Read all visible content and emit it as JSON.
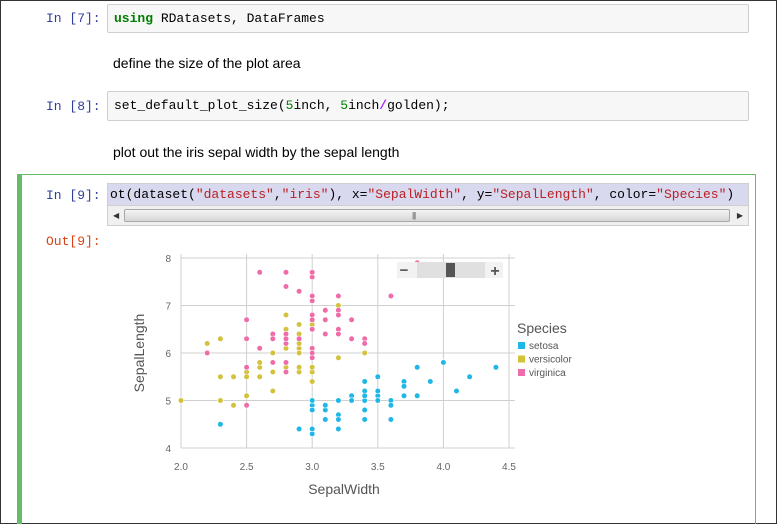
{
  "cells": {
    "c7": {
      "prompt": "In [7]:",
      "kw": "using",
      "rest": " RDatasets, DataFrames"
    },
    "md1": {
      "text": "define the size of the plot area"
    },
    "c8": {
      "prompt": "In [8]:",
      "p1": "set_default_plot_size(",
      "n1": "5",
      "p2": "inch, ",
      "n2": "5",
      "p3": "inch",
      "op": "/",
      "p4": "golden);"
    },
    "md2": {
      "text": "plot out the iris sepal width by the sepal length"
    },
    "c9": {
      "prompt": "In [9]:",
      "out_prompt": "Out[9]:",
      "t1": "ot(dataset(",
      "s1": "\"datasets\"",
      "t2": ",",
      "s2": "\"iris\"",
      "t3": "), x=",
      "s3": "\"SepalWidth\"",
      "t4": ", y=",
      "s4": "\"SepalLength\"",
      "t5": ", color=",
      "s5": "\"Species\"",
      "t6": ")"
    }
  },
  "plot_controls": {
    "zoom_out": "−",
    "zoom_in": "+"
  },
  "colors": {
    "setosa": "#1fb7e8",
    "versicolor": "#d4c13c",
    "virginica": "#ee6ca8"
  },
  "chart_data": {
    "type": "scatter",
    "xlabel": "SepalWidth",
    "ylabel": "SepalLength",
    "xlim": [
      2.0,
      4.5
    ],
    "ylim": [
      4,
      8
    ],
    "xticks": [
      "2.0",
      "2.5",
      "3.0",
      "3.5",
      "4.0",
      "4.5"
    ],
    "yticks": [
      "4",
      "5",
      "6",
      "7",
      "8"
    ],
    "legend_title": "Species",
    "legend_position": "right",
    "grid": true,
    "series": [
      {
        "name": "setosa",
        "points": [
          [
            3.5,
            5.1
          ],
          [
            3.0,
            4.9
          ],
          [
            3.2,
            4.7
          ],
          [
            3.1,
            4.6
          ],
          [
            3.6,
            5.0
          ],
          [
            3.9,
            5.4
          ],
          [
            3.4,
            4.6
          ],
          [
            3.4,
            5.0
          ],
          [
            2.9,
            4.4
          ],
          [
            3.1,
            4.9
          ],
          [
            3.7,
            5.4
          ],
          [
            3.4,
            4.8
          ],
          [
            3.0,
            4.8
          ],
          [
            3.0,
            4.3
          ],
          [
            4.0,
            5.8
          ],
          [
            4.4,
            5.7
          ],
          [
            3.9,
            5.4
          ],
          [
            3.5,
            5.1
          ],
          [
            3.8,
            5.7
          ],
          [
            3.8,
            5.1
          ],
          [
            3.4,
            5.4
          ],
          [
            3.7,
            5.1
          ],
          [
            3.6,
            4.6
          ],
          [
            3.3,
            5.1
          ],
          [
            3.4,
            4.8
          ],
          [
            3.0,
            5.0
          ],
          [
            3.4,
            5.0
          ],
          [
            3.5,
            5.2
          ],
          [
            3.4,
            5.2
          ],
          [
            3.2,
            4.7
          ],
          [
            3.1,
            4.8
          ],
          [
            3.4,
            5.4
          ],
          [
            4.1,
            5.2
          ],
          [
            4.2,
            5.5
          ],
          [
            3.1,
            4.9
          ],
          [
            3.2,
            5.0
          ],
          [
            3.5,
            5.5
          ],
          [
            3.6,
            4.9
          ],
          [
            3.0,
            4.4
          ],
          [
            3.4,
            5.1
          ],
          [
            3.5,
            5.0
          ],
          [
            2.3,
            4.5
          ],
          [
            3.2,
            4.4
          ],
          [
            3.5,
            5.0
          ],
          [
            3.8,
            5.1
          ],
          [
            3.0,
            4.8
          ],
          [
            3.8,
            5.1
          ],
          [
            3.2,
            4.6
          ],
          [
            3.7,
            5.3
          ],
          [
            3.3,
            5.0
          ]
        ]
      },
      {
        "name": "versicolor",
        "points": [
          [
            3.2,
            7.0
          ],
          [
            3.2,
            6.4
          ],
          [
            3.1,
            6.9
          ],
          [
            2.3,
            5.5
          ],
          [
            2.8,
            6.5
          ],
          [
            2.8,
            5.7
          ],
          [
            3.3,
            6.3
          ],
          [
            2.4,
            4.9
          ],
          [
            2.9,
            6.6
          ],
          [
            2.7,
            5.2
          ],
          [
            2.0,
            5.0
          ],
          [
            3.0,
            5.9
          ],
          [
            2.2,
            6.0
          ],
          [
            2.9,
            6.1
          ],
          [
            2.9,
            5.6
          ],
          [
            3.1,
            6.7
          ],
          [
            3.0,
            5.6
          ],
          [
            2.7,
            5.8
          ],
          [
            2.2,
            6.2
          ],
          [
            2.5,
            5.6
          ],
          [
            3.2,
            5.9
          ],
          [
            2.8,
            6.1
          ],
          [
            2.5,
            6.3
          ],
          [
            2.8,
            6.1
          ],
          [
            2.9,
            6.4
          ],
          [
            3.0,
            6.6
          ],
          [
            2.8,
            6.8
          ],
          [
            3.0,
            6.7
          ],
          [
            2.9,
            6.0
          ],
          [
            2.6,
            5.7
          ],
          [
            2.4,
            5.5
          ],
          [
            2.4,
            5.5
          ],
          [
            2.7,
            5.8
          ],
          [
            2.7,
            6.0
          ],
          [
            3.0,
            5.4
          ],
          [
            3.4,
            6.0
          ],
          [
            3.1,
            6.7
          ],
          [
            2.3,
            6.3
          ],
          [
            3.0,
            5.6
          ],
          [
            2.5,
            5.5
          ],
          [
            2.6,
            5.5
          ],
          [
            3.0,
            6.1
          ],
          [
            2.6,
            5.8
          ],
          [
            2.3,
            5.0
          ],
          [
            2.7,
            5.6
          ],
          [
            3.0,
            5.7
          ],
          [
            2.9,
            5.7
          ],
          [
            2.9,
            6.2
          ],
          [
            2.5,
            5.1
          ],
          [
            2.8,
            5.7
          ]
        ]
      },
      {
        "name": "virginica",
        "points": [
          [
            3.3,
            6.3
          ],
          [
            2.7,
            5.8
          ],
          [
            3.0,
            7.1
          ],
          [
            2.9,
            6.3
          ],
          [
            3.0,
            6.5
          ],
          [
            3.0,
            7.6
          ],
          [
            2.5,
            4.9
          ],
          [
            2.9,
            7.3
          ],
          [
            2.5,
            6.7
          ],
          [
            3.6,
            7.2
          ],
          [
            3.2,
            6.5
          ],
          [
            2.7,
            6.4
          ],
          [
            3.0,
            6.8
          ],
          [
            2.5,
            5.7
          ],
          [
            2.8,
            5.8
          ],
          [
            3.2,
            6.4
          ],
          [
            3.0,
            6.5
          ],
          [
            3.8,
            7.7
          ],
          [
            2.6,
            7.7
          ],
          [
            2.2,
            6.0
          ],
          [
            3.2,
            6.9
          ],
          [
            2.8,
            5.6
          ],
          [
            2.8,
            7.7
          ],
          [
            2.7,
            6.3
          ],
          [
            3.3,
            6.7
          ],
          [
            3.2,
            7.2
          ],
          [
            2.8,
            6.2
          ],
          [
            3.0,
            6.1
          ],
          [
            2.8,
            6.4
          ],
          [
            3.0,
            7.2
          ],
          [
            2.8,
            7.4
          ],
          [
            3.8,
            7.9
          ],
          [
            2.8,
            6.4
          ],
          [
            2.8,
            6.3
          ],
          [
            2.6,
            6.1
          ],
          [
            3.0,
            7.7
          ],
          [
            3.4,
            6.3
          ],
          [
            3.1,
            6.4
          ],
          [
            3.0,
            6.0
          ],
          [
            3.1,
            6.9
          ],
          [
            3.1,
            6.7
          ],
          [
            3.1,
            6.9
          ],
          [
            2.7,
            5.8
          ],
          [
            3.2,
            6.8
          ],
          [
            3.3,
            6.7
          ],
          [
            3.0,
            6.7
          ],
          [
            2.5,
            6.3
          ],
          [
            3.0,
            6.5
          ],
          [
            3.4,
            6.2
          ],
          [
            3.0,
            5.9
          ]
        ]
      }
    ]
  }
}
